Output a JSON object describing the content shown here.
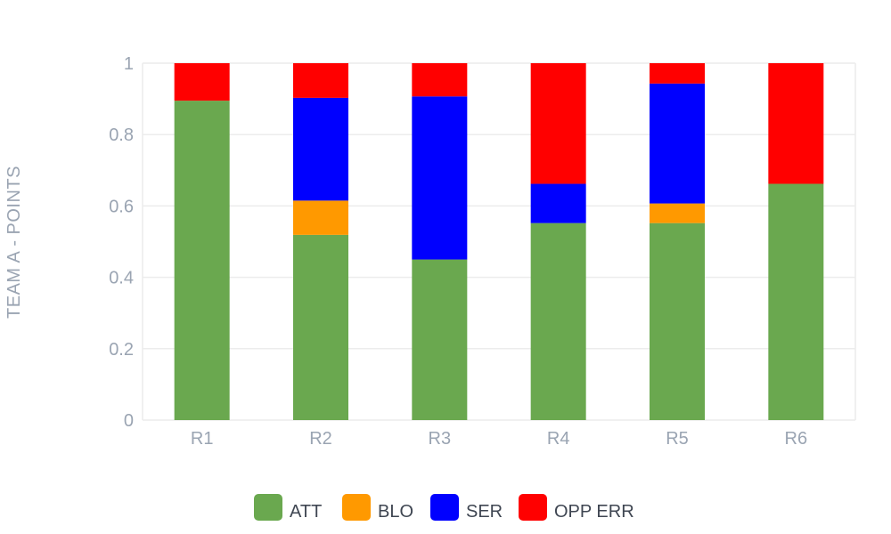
{
  "chart_data": {
    "type": "bar",
    "stacked": true,
    "categories": [
      "R1",
      "R2",
      "R3",
      "R4",
      "R5",
      "R6"
    ],
    "series": [
      {
        "name": "ATT",
        "color": "#6aa84f",
        "values": [
          0.895,
          0.519,
          0.45,
          0.552,
          0.552,
          0.662
        ]
      },
      {
        "name": "BLO",
        "color": "#ff9900",
        "values": [
          0.0,
          0.096,
          0.0,
          0.0,
          0.055,
          0.0
        ]
      },
      {
        "name": "SER",
        "color": "#0000ff",
        "values": [
          0.0,
          0.288,
          0.457,
          0.11,
          0.336,
          0.0
        ]
      },
      {
        "name": "OPP ERR",
        "color": "#ff0000",
        "values": [
          0.105,
          0.097,
          0.093,
          0.338,
          0.057,
          0.338
        ]
      }
    ],
    "title": "",
    "xlabel": "",
    "ylabel": "TEAM A - POINTS",
    "ylim": [
      0,
      1
    ],
    "yticks": [
      "0",
      "0.2",
      "0.4",
      "0.6",
      "0.8",
      "1"
    ],
    "grid": true,
    "legend_position": "bottom"
  }
}
